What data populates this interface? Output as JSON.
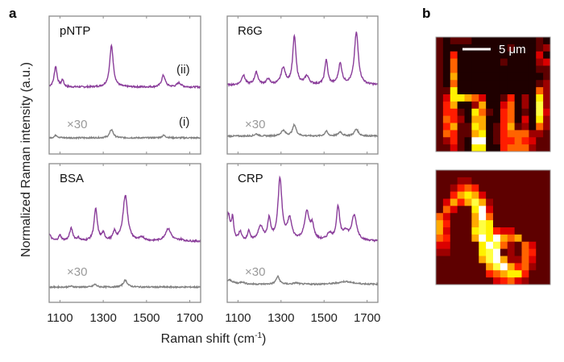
{
  "panel_labels": {
    "a": "a",
    "b": "b"
  },
  "chart_data": {
    "type": "line",
    "xlabel": "Raman shift (cm",
    "xlabel_sup": "-1",
    "xlabel_end": ")",
    "ylabel": "Normalized Raman intensity (a.u.)",
    "xlim": [
      1050,
      1750
    ],
    "xticks": [
      1100,
      1300,
      1500,
      1700
    ],
    "grid": false,
    "colors": {
      "enhanced": "#8a3d9a",
      "reference": "#808080",
      "frame": "#8c8c8c"
    },
    "series_labels": {
      "enhanced": "(ii)",
      "reference": "(i)"
    },
    "scale_note": "×30",
    "panels": [
      {
        "name": "pNTP",
        "show_series_labels": true,
        "ii": {
          "baseline": 0.485,
          "peaks": [
            [
              1080,
              0.15,
              8
            ],
            [
              1112,
              0.05,
              6
            ],
            [
              1338,
              0.3,
              10
            ],
            [
              1578,
              0.085,
              10
            ],
            [
              1650,
              0.03,
              12
            ]
          ]
        },
        "i": {
          "baseline": 0.117,
          "peaks": [
            [
              1082,
              0.02,
              8
            ],
            [
              1338,
              0.06,
              10
            ],
            [
              1580,
              0.018,
              10
            ]
          ]
        }
      },
      {
        "name": "R6G",
        "show_series_labels": false,
        "ii": {
          "baseline": 0.5,
          "peaks": [
            [
              1125,
              0.07,
              10
            ],
            [
              1185,
              0.09,
              10
            ],
            [
              1240,
              0.04,
              10
            ],
            [
              1310,
              0.12,
              12
            ],
            [
              1362,
              0.35,
              9
            ],
            [
              1420,
              0.06,
              12
            ],
            [
              1510,
              0.18,
              8
            ],
            [
              1575,
              0.15,
              10
            ],
            [
              1650,
              0.38,
              11
            ]
          ]
        },
        "i": {
          "baseline": 0.13,
          "peaks": [
            [
              1185,
              0.015,
              10
            ],
            [
              1310,
              0.04,
              12
            ],
            [
              1362,
              0.08,
              10
            ],
            [
              1510,
              0.035,
              8
            ],
            [
              1575,
              0.03,
              10
            ],
            [
              1650,
              0.05,
              11
            ]
          ]
        }
      },
      {
        "name": "BSA",
        "show_series_labels": false,
        "ii": {
          "baseline": 0.44,
          "peaks": [
            [
              1050,
              0.05,
              10
            ],
            [
              1100,
              0.04,
              8
            ],
            [
              1152,
              0.09,
              9
            ],
            [
              1185,
              0.02,
              8
            ],
            [
              1265,
              0.23,
              9
            ],
            [
              1300,
              0.05,
              8
            ],
            [
              1352,
              0.06,
              8
            ],
            [
              1402,
              0.33,
              13
            ],
            [
              1480,
              0.025,
              12
            ],
            [
              1600,
              0.09,
              16
            ],
            [
              1660,
              0.01,
              12
            ]
          ]
        },
        "i": {
          "baseline": 0.11,
          "peaks": [
            [
              1152,
              0.006,
              9
            ],
            [
              1262,
              0.02,
              9
            ],
            [
              1402,
              0.05,
              11
            ]
          ]
        }
      },
      {
        "name": "CRP",
        "show_series_labels": false,
        "ii": {
          "baseline": 0.44,
          "peaks": [
            [
              1055,
              0.19,
              10
            ],
            [
              1075,
              0.15,
              6
            ],
            [
              1110,
              0.06,
              8
            ],
            [
              1150,
              0.07,
              6
            ],
            [
              1205,
              0.1,
              14
            ],
            [
              1245,
              0.15,
              8
            ],
            [
              1295,
              0.44,
              11
            ],
            [
              1340,
              0.15,
              12
            ],
            [
              1420,
              0.2,
              13
            ],
            [
              1445,
              0.1,
              10
            ],
            [
              1525,
              0.05,
              12
            ],
            [
              1565,
              0.24,
              9
            ],
            [
              1600,
              0.06,
              14
            ],
            [
              1640,
              0.18,
              14
            ]
          ]
        },
        "i": {
          "baseline": 0.13,
          "peaks": [
            [
              1060,
              0.03,
              20
            ],
            [
              1120,
              0.015,
              12
            ],
            [
              1285,
              0.055,
              10
            ],
            [
              1370,
              0.01,
              12
            ],
            [
              1600,
              0.02,
              40
            ]
          ]
        }
      }
    ]
  },
  "images": {
    "scale_bar_label": "5 μm",
    "colormap": "hot",
    "top": [
      "1011100000000010",
      "1000000000100012",
      "1040000000000030",
      "1050000001000023",
      "1050000000000011",
      "1060000000000001",
      "1050000000000012",
      "1170000000000052",
      "1377653001402072",
      "1460026003502082",
      "1441075104501083",
      "1542066004503072",
      "1461176014612052",
      "1541167014555221",
      "1241099014454311",
      "1131077004555211"
    ],
    "bottom": [
      "1111111111111111",
      "1112211111111111",
      "1124541111111111",
      "1146763111111111",
      "1364686211111111",
      "1531179311111111",
      "5311169511111111",
      "6411168711111111",
      "6311178743311111",
      "5411169796561111",
      "3311117985215311",
      "2211117891215411",
      "1111116896225311",
      "1111111689645211",
      "1111111456774111",
      "1111111134532111"
    ]
  }
}
